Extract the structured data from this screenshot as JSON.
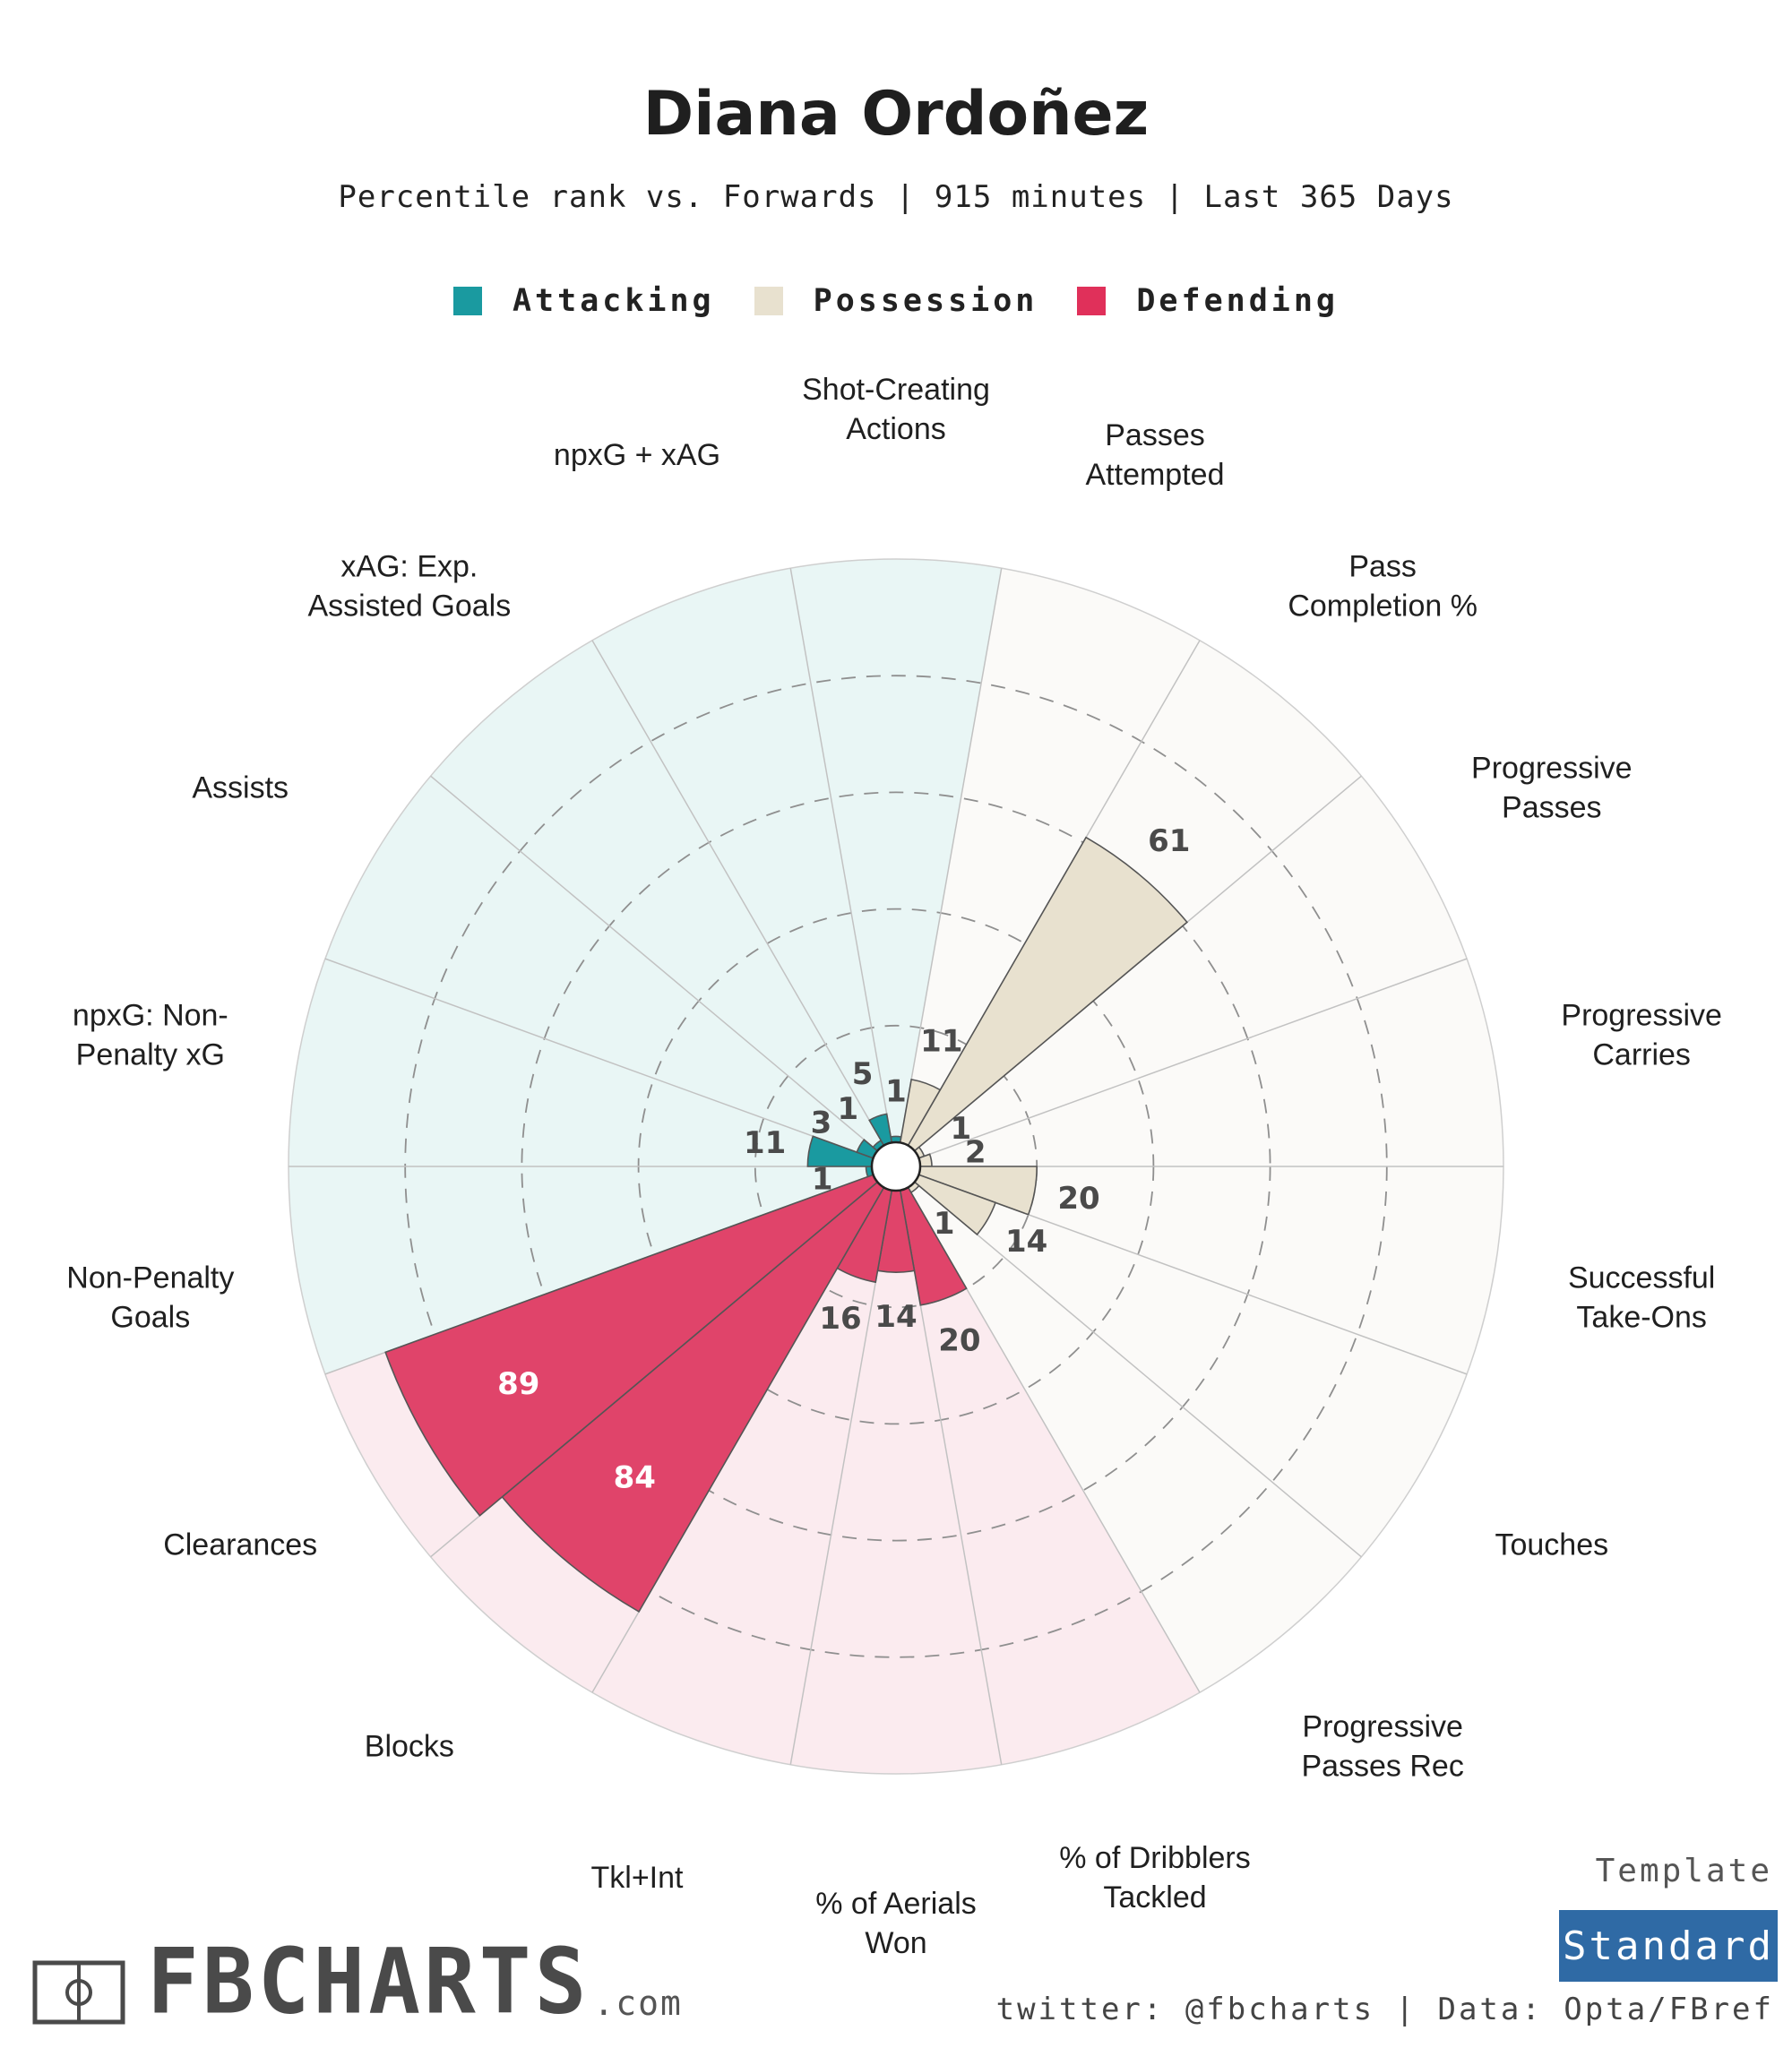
{
  "title": "Diana Ordoñez",
  "subtitle": "Percentile rank vs. Forwards | 915 minutes | Last 365 Days",
  "legend": [
    {
      "label": "Attacking",
      "color": "#1a9aa0"
    },
    {
      "label": "Possession",
      "color": "#e8e1cf"
    },
    {
      "label": "Defending",
      "color": "#e0305a"
    }
  ],
  "colors": {
    "attacking_bg": "#e9f6f5",
    "possession_bg": "#fbfaf8",
    "defending_bg": "#fbebef",
    "attacking_bar": "#1a9aa0",
    "possession_bar": "#e8e1cf",
    "defending_bar": "#e0446a",
    "value_text_dark": "#4a4a4a",
    "value_text_light": "#ffffff",
    "template_badge": "#2f6aa5"
  },
  "chart_data": {
    "type": "radar-bar",
    "title": "Diana Ordoñez",
    "scale": [
      0,
      100
    ],
    "grid_rings": [
      20,
      40,
      60,
      80
    ],
    "categories": [
      {
        "label": "Shot-Creating\nActions",
        "value": 1,
        "group": "Attacking"
      },
      {
        "label": "Passes\nAttempted",
        "value": 11,
        "group": "Possession"
      },
      {
        "label": "Pass\nCompletion %",
        "value": 61,
        "group": "Possession"
      },
      {
        "label": "Progressive\nPasses",
        "value": 1,
        "group": "Possession"
      },
      {
        "label": "Progressive\nCarries",
        "value": 2,
        "group": "Possession"
      },
      {
        "label": "Successful\nTake-Ons",
        "value": 20,
        "group": "Possession"
      },
      {
        "label": "Touches",
        "value": 14,
        "group": "Possession"
      },
      {
        "label": "Progressive\nPasses Rec",
        "value": 1,
        "group": "Possession"
      },
      {
        "label": "% of Dribblers\nTackled",
        "value": 20,
        "group": "Defending"
      },
      {
        "label": "% of Aerials\nWon",
        "value": 14,
        "group": "Defending"
      },
      {
        "label": "Tkl+Int",
        "value": 16,
        "group": "Defending"
      },
      {
        "label": "Blocks",
        "value": 84,
        "group": "Defending"
      },
      {
        "label": "Clearances",
        "value": 89,
        "group": "Defending"
      },
      {
        "label": "Non-Penalty\nGoals",
        "value": 1,
        "group": "Attacking"
      },
      {
        "label": "npxG: Non-\nPenalty xG",
        "value": 11,
        "group": "Attacking"
      },
      {
        "label": "Assists",
        "value": 3,
        "group": "Attacking"
      },
      {
        "label": "xAG: Exp.\nAssisted Goals",
        "value": 1,
        "group": "Attacking"
      },
      {
        "label": "npxG + xAG",
        "value": 5,
        "group": "Attacking"
      }
    ]
  },
  "branding": {
    "logo_text": "FBCHARTS",
    "logo_suffix": ".com",
    "template_label": "Template",
    "template_name": "Standard",
    "footer": "twitter: @fbcharts | Data: Opta/FBref"
  }
}
